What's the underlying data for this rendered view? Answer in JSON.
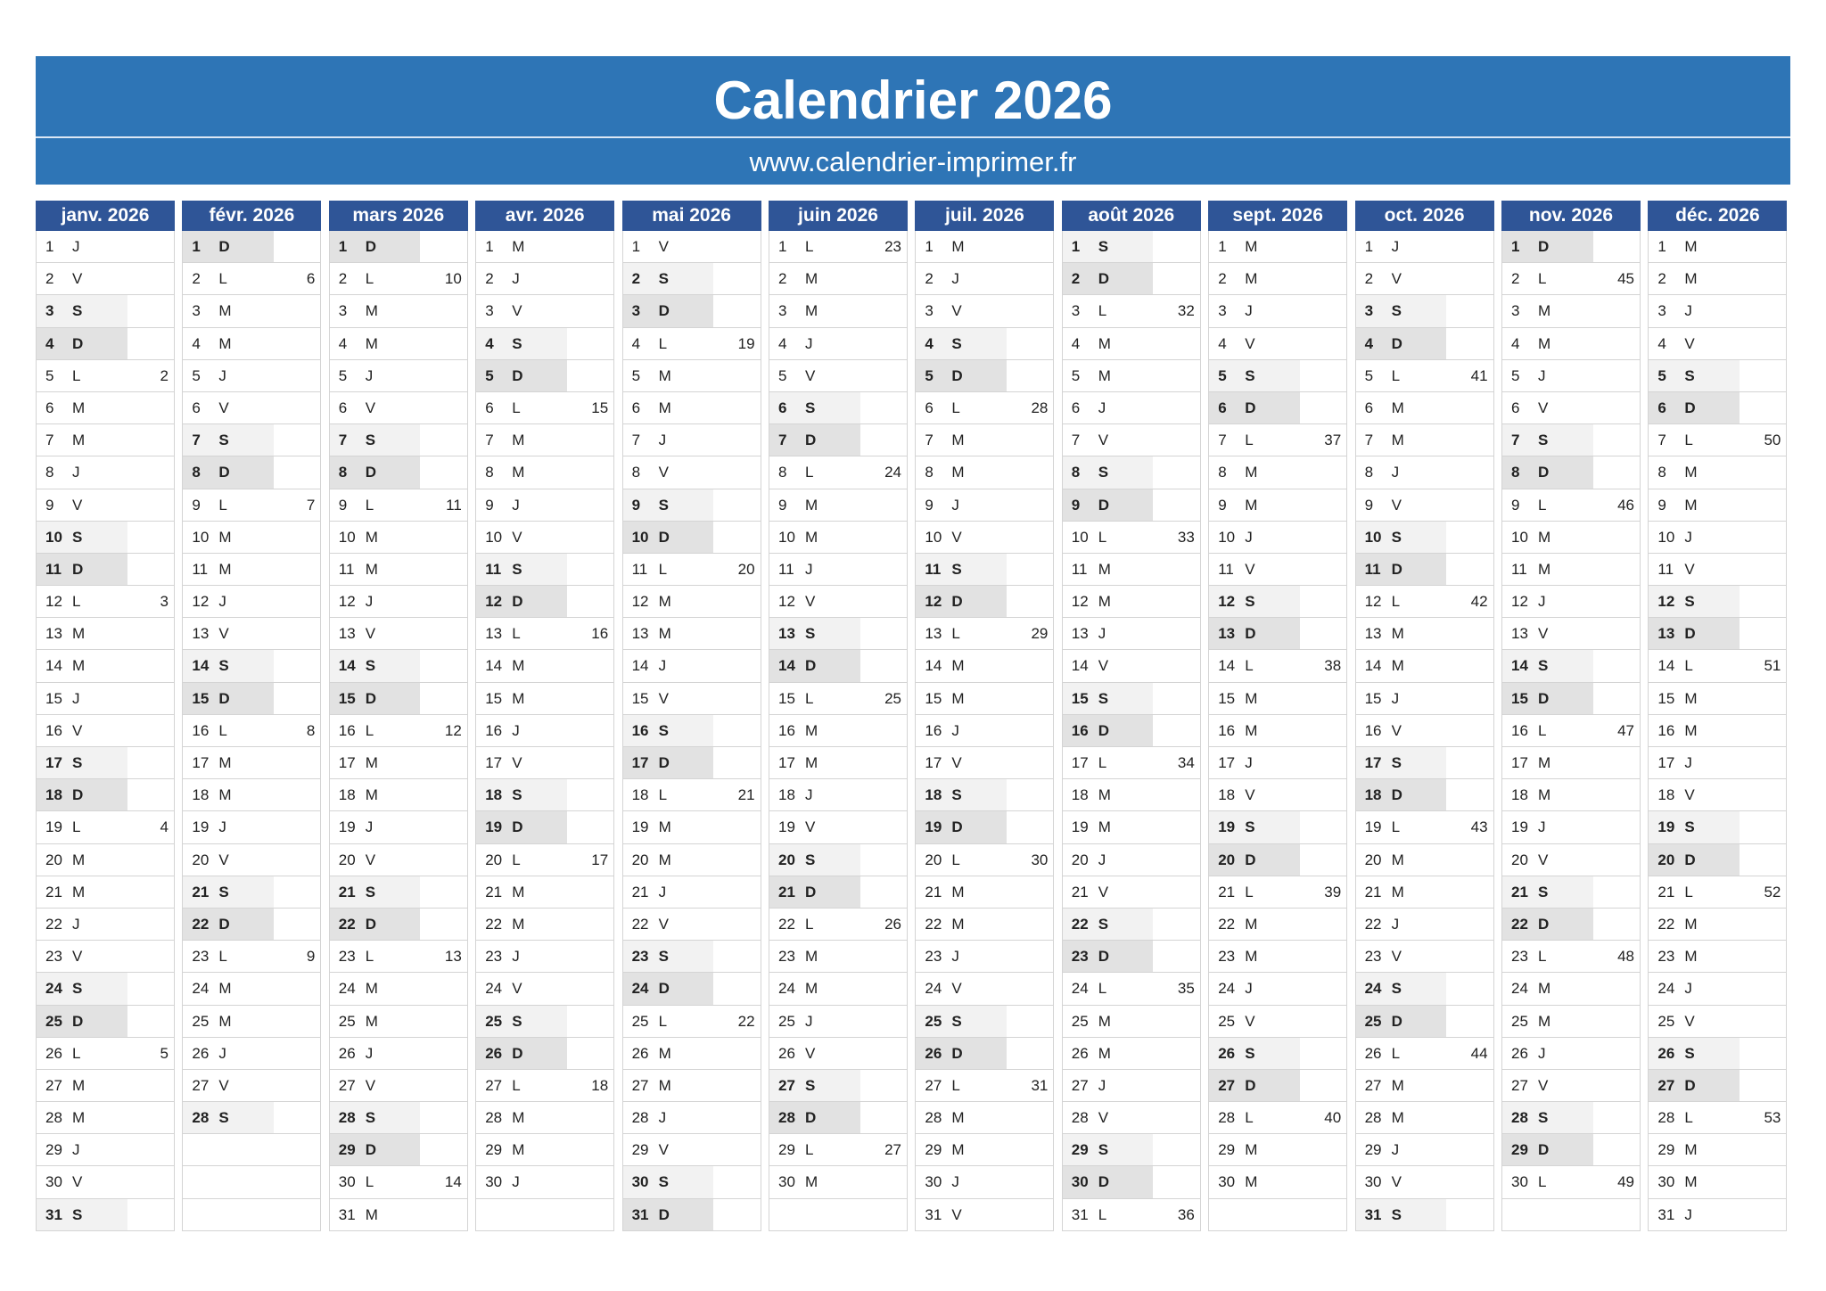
{
  "header": {
    "title": "Calendrier 2026",
    "url": "www.calendrier-imprimer.fr"
  },
  "months": [
    {
      "name": "janv. 2026",
      "days": [
        [
          1,
          "J"
        ],
        [
          2,
          "V"
        ],
        [
          3,
          "S"
        ],
        [
          4,
          "D"
        ],
        [
          5,
          "L",
          2
        ],
        [
          6,
          "M"
        ],
        [
          7,
          "M"
        ],
        [
          8,
          "J"
        ],
        [
          9,
          "V"
        ],
        [
          10,
          "S"
        ],
        [
          11,
          "D"
        ],
        [
          12,
          "L",
          3
        ],
        [
          13,
          "M"
        ],
        [
          14,
          "M"
        ],
        [
          15,
          "J"
        ],
        [
          16,
          "V"
        ],
        [
          17,
          "S"
        ],
        [
          18,
          "D"
        ],
        [
          19,
          "L",
          4
        ],
        [
          20,
          "M"
        ],
        [
          21,
          "M"
        ],
        [
          22,
          "J"
        ],
        [
          23,
          "V"
        ],
        [
          24,
          "S"
        ],
        [
          25,
          "D"
        ],
        [
          26,
          "L",
          5
        ],
        [
          27,
          "M"
        ],
        [
          28,
          "M"
        ],
        [
          29,
          "J"
        ],
        [
          30,
          "V"
        ],
        [
          31,
          "S"
        ]
      ]
    },
    {
      "name": "févr. 2026",
      "days": [
        [
          1,
          "D"
        ],
        [
          2,
          "L",
          6
        ],
        [
          3,
          "M"
        ],
        [
          4,
          "M"
        ],
        [
          5,
          "J"
        ],
        [
          6,
          "V"
        ],
        [
          7,
          "S"
        ],
        [
          8,
          "D"
        ],
        [
          9,
          "L",
          7
        ],
        [
          10,
          "M"
        ],
        [
          11,
          "M"
        ],
        [
          12,
          "J"
        ],
        [
          13,
          "V"
        ],
        [
          14,
          "S"
        ],
        [
          15,
          "D"
        ],
        [
          16,
          "L",
          8
        ],
        [
          17,
          "M"
        ],
        [
          18,
          "M"
        ],
        [
          19,
          "J"
        ],
        [
          20,
          "V"
        ],
        [
          21,
          "S"
        ],
        [
          22,
          "D"
        ],
        [
          23,
          "L",
          9
        ],
        [
          24,
          "M"
        ],
        [
          25,
          "M"
        ],
        [
          26,
          "J"
        ],
        [
          27,
          "V"
        ],
        [
          28,
          "S"
        ]
      ]
    },
    {
      "name": "mars 2026",
      "days": [
        [
          1,
          "D"
        ],
        [
          2,
          "L",
          10
        ],
        [
          3,
          "M"
        ],
        [
          4,
          "M"
        ],
        [
          5,
          "J"
        ],
        [
          6,
          "V"
        ],
        [
          7,
          "S"
        ],
        [
          8,
          "D"
        ],
        [
          9,
          "L",
          11
        ],
        [
          10,
          "M"
        ],
        [
          11,
          "M"
        ],
        [
          12,
          "J"
        ],
        [
          13,
          "V"
        ],
        [
          14,
          "S"
        ],
        [
          15,
          "D"
        ],
        [
          16,
          "L",
          12
        ],
        [
          17,
          "M"
        ],
        [
          18,
          "M"
        ],
        [
          19,
          "J"
        ],
        [
          20,
          "V"
        ],
        [
          21,
          "S"
        ],
        [
          22,
          "D"
        ],
        [
          23,
          "L",
          13
        ],
        [
          24,
          "M"
        ],
        [
          25,
          "M"
        ],
        [
          26,
          "J"
        ],
        [
          27,
          "V"
        ],
        [
          28,
          "S"
        ],
        [
          29,
          "D"
        ],
        [
          30,
          "L",
          14
        ],
        [
          31,
          "M"
        ]
      ]
    },
    {
      "name": "avr. 2026",
      "days": [
        [
          1,
          "M"
        ],
        [
          2,
          "J"
        ],
        [
          3,
          "V"
        ],
        [
          4,
          "S"
        ],
        [
          5,
          "D"
        ],
        [
          6,
          "L",
          15
        ],
        [
          7,
          "M"
        ],
        [
          8,
          "M"
        ],
        [
          9,
          "J"
        ],
        [
          10,
          "V"
        ],
        [
          11,
          "S"
        ],
        [
          12,
          "D"
        ],
        [
          13,
          "L",
          16
        ],
        [
          14,
          "M"
        ],
        [
          15,
          "M"
        ],
        [
          16,
          "J"
        ],
        [
          17,
          "V"
        ],
        [
          18,
          "S"
        ],
        [
          19,
          "D"
        ],
        [
          20,
          "L",
          17
        ],
        [
          21,
          "M"
        ],
        [
          22,
          "M"
        ],
        [
          23,
          "J"
        ],
        [
          24,
          "V"
        ],
        [
          25,
          "S"
        ],
        [
          26,
          "D"
        ],
        [
          27,
          "L",
          18
        ],
        [
          28,
          "M"
        ],
        [
          29,
          "M"
        ],
        [
          30,
          "J"
        ]
      ]
    },
    {
      "name": "mai 2026",
      "days": [
        [
          1,
          "V"
        ],
        [
          2,
          "S"
        ],
        [
          3,
          "D"
        ],
        [
          4,
          "L",
          19
        ],
        [
          5,
          "M"
        ],
        [
          6,
          "M"
        ],
        [
          7,
          "J"
        ],
        [
          8,
          "V"
        ],
        [
          9,
          "S"
        ],
        [
          10,
          "D"
        ],
        [
          11,
          "L",
          20
        ],
        [
          12,
          "M"
        ],
        [
          13,
          "M"
        ],
        [
          14,
          "J"
        ],
        [
          15,
          "V"
        ],
        [
          16,
          "S"
        ],
        [
          17,
          "D"
        ],
        [
          18,
          "L",
          21
        ],
        [
          19,
          "M"
        ],
        [
          20,
          "M"
        ],
        [
          21,
          "J"
        ],
        [
          22,
          "V"
        ],
        [
          23,
          "S"
        ],
        [
          24,
          "D"
        ],
        [
          25,
          "L",
          22
        ],
        [
          26,
          "M"
        ],
        [
          27,
          "M"
        ],
        [
          28,
          "J"
        ],
        [
          29,
          "V"
        ],
        [
          30,
          "S"
        ],
        [
          31,
          "D"
        ]
      ]
    },
    {
      "name": "juin 2026",
      "days": [
        [
          1,
          "L",
          23
        ],
        [
          2,
          "M"
        ],
        [
          3,
          "M"
        ],
        [
          4,
          "J"
        ],
        [
          5,
          "V"
        ],
        [
          6,
          "S"
        ],
        [
          7,
          "D"
        ],
        [
          8,
          "L",
          24
        ],
        [
          9,
          "M"
        ],
        [
          10,
          "M"
        ],
        [
          11,
          "J"
        ],
        [
          12,
          "V"
        ],
        [
          13,
          "S"
        ],
        [
          14,
          "D"
        ],
        [
          15,
          "L",
          25
        ],
        [
          16,
          "M"
        ],
        [
          17,
          "M"
        ],
        [
          18,
          "J"
        ],
        [
          19,
          "V"
        ],
        [
          20,
          "S"
        ],
        [
          21,
          "D"
        ],
        [
          22,
          "L",
          26
        ],
        [
          23,
          "M"
        ],
        [
          24,
          "M"
        ],
        [
          25,
          "J"
        ],
        [
          26,
          "V"
        ],
        [
          27,
          "S"
        ],
        [
          28,
          "D"
        ],
        [
          29,
          "L",
          27
        ],
        [
          30,
          "M"
        ]
      ]
    },
    {
      "name": "juil. 2026",
      "days": [
        [
          1,
          "M"
        ],
        [
          2,
          "J"
        ],
        [
          3,
          "V"
        ],
        [
          4,
          "S"
        ],
        [
          5,
          "D"
        ],
        [
          6,
          "L",
          28
        ],
        [
          7,
          "M"
        ],
        [
          8,
          "M"
        ],
        [
          9,
          "J"
        ],
        [
          10,
          "V"
        ],
        [
          11,
          "S"
        ],
        [
          12,
          "D"
        ],
        [
          13,
          "L",
          29
        ],
        [
          14,
          "M"
        ],
        [
          15,
          "M"
        ],
        [
          16,
          "J"
        ],
        [
          17,
          "V"
        ],
        [
          18,
          "S"
        ],
        [
          19,
          "D"
        ],
        [
          20,
          "L",
          30
        ],
        [
          21,
          "M"
        ],
        [
          22,
          "M"
        ],
        [
          23,
          "J"
        ],
        [
          24,
          "V"
        ],
        [
          25,
          "S"
        ],
        [
          26,
          "D"
        ],
        [
          27,
          "L",
          31
        ],
        [
          28,
          "M"
        ],
        [
          29,
          "M"
        ],
        [
          30,
          "J"
        ],
        [
          31,
          "V"
        ]
      ]
    },
    {
      "name": "août 2026",
      "days": [
        [
          1,
          "S"
        ],
        [
          2,
          "D"
        ],
        [
          3,
          "L",
          32
        ],
        [
          4,
          "M"
        ],
        [
          5,
          "M"
        ],
        [
          6,
          "J"
        ],
        [
          7,
          "V"
        ],
        [
          8,
          "S"
        ],
        [
          9,
          "D"
        ],
        [
          10,
          "L",
          33
        ],
        [
          11,
          "M"
        ],
        [
          12,
          "M"
        ],
        [
          13,
          "J"
        ],
        [
          14,
          "V"
        ],
        [
          15,
          "S"
        ],
        [
          16,
          "D"
        ],
        [
          17,
          "L",
          34
        ],
        [
          18,
          "M"
        ],
        [
          19,
          "M"
        ],
        [
          20,
          "J"
        ],
        [
          21,
          "V"
        ],
        [
          22,
          "S"
        ],
        [
          23,
          "D"
        ],
        [
          24,
          "L",
          35
        ],
        [
          25,
          "M"
        ],
        [
          26,
          "M"
        ],
        [
          27,
          "J"
        ],
        [
          28,
          "V"
        ],
        [
          29,
          "S"
        ],
        [
          30,
          "D"
        ],
        [
          31,
          "L",
          36
        ]
      ]
    },
    {
      "name": "sept. 2026",
      "days": [
        [
          1,
          "M"
        ],
        [
          2,
          "M"
        ],
        [
          3,
          "J"
        ],
        [
          4,
          "V"
        ],
        [
          5,
          "S"
        ],
        [
          6,
          "D"
        ],
        [
          7,
          "L",
          37
        ],
        [
          8,
          "M"
        ],
        [
          9,
          "M"
        ],
        [
          10,
          "J"
        ],
        [
          11,
          "V"
        ],
        [
          12,
          "S"
        ],
        [
          13,
          "D"
        ],
        [
          14,
          "L",
          38
        ],
        [
          15,
          "M"
        ],
        [
          16,
          "M"
        ],
        [
          17,
          "J"
        ],
        [
          18,
          "V"
        ],
        [
          19,
          "S"
        ],
        [
          20,
          "D"
        ],
        [
          21,
          "L",
          39
        ],
        [
          22,
          "M"
        ],
        [
          23,
          "M"
        ],
        [
          24,
          "J"
        ],
        [
          25,
          "V"
        ],
        [
          26,
          "S"
        ],
        [
          27,
          "D"
        ],
        [
          28,
          "L",
          40
        ],
        [
          29,
          "M"
        ],
        [
          30,
          "M"
        ]
      ]
    },
    {
      "name": "oct. 2026",
      "days": [
        [
          1,
          "J"
        ],
        [
          2,
          "V"
        ],
        [
          3,
          "S"
        ],
        [
          4,
          "D"
        ],
        [
          5,
          "L",
          41
        ],
        [
          6,
          "M"
        ],
        [
          7,
          "M"
        ],
        [
          8,
          "J"
        ],
        [
          9,
          "V"
        ],
        [
          10,
          "S"
        ],
        [
          11,
          "D"
        ],
        [
          12,
          "L",
          42
        ],
        [
          13,
          "M"
        ],
        [
          14,
          "M"
        ],
        [
          15,
          "J"
        ],
        [
          16,
          "V"
        ],
        [
          17,
          "S"
        ],
        [
          18,
          "D"
        ],
        [
          19,
          "L",
          43
        ],
        [
          20,
          "M"
        ],
        [
          21,
          "M"
        ],
        [
          22,
          "J"
        ],
        [
          23,
          "V"
        ],
        [
          24,
          "S"
        ],
        [
          25,
          "D"
        ],
        [
          26,
          "L",
          44
        ],
        [
          27,
          "M"
        ],
        [
          28,
          "M"
        ],
        [
          29,
          "J"
        ],
        [
          30,
          "V"
        ],
        [
          31,
          "S"
        ]
      ]
    },
    {
      "name": "nov. 2026",
      "days": [
        [
          1,
          "D"
        ],
        [
          2,
          "L",
          45
        ],
        [
          3,
          "M"
        ],
        [
          4,
          "M"
        ],
        [
          5,
          "J"
        ],
        [
          6,
          "V"
        ],
        [
          7,
          "S"
        ],
        [
          8,
          "D"
        ],
        [
          9,
          "L",
          46
        ],
        [
          10,
          "M"
        ],
        [
          11,
          "M"
        ],
        [
          12,
          "J"
        ],
        [
          13,
          "V"
        ],
        [
          14,
          "S"
        ],
        [
          15,
          "D"
        ],
        [
          16,
          "L",
          47
        ],
        [
          17,
          "M"
        ],
        [
          18,
          "M"
        ],
        [
          19,
          "J"
        ],
        [
          20,
          "V"
        ],
        [
          21,
          "S"
        ],
        [
          22,
          "D"
        ],
        [
          23,
          "L",
          48
        ],
        [
          24,
          "M"
        ],
        [
          25,
          "M"
        ],
        [
          26,
          "J"
        ],
        [
          27,
          "V"
        ],
        [
          28,
          "S"
        ],
        [
          29,
          "D"
        ],
        [
          30,
          "L",
          49
        ]
      ]
    },
    {
      "name": "déc. 2026",
      "days": [
        [
          1,
          "M"
        ],
        [
          2,
          "M"
        ],
        [
          3,
          "J"
        ],
        [
          4,
          "V"
        ],
        [
          5,
          "S"
        ],
        [
          6,
          "D"
        ],
        [
          7,
          "L",
          50
        ],
        [
          8,
          "M"
        ],
        [
          9,
          "M"
        ],
        [
          10,
          "J"
        ],
        [
          11,
          "V"
        ],
        [
          12,
          "S"
        ],
        [
          13,
          "D"
        ],
        [
          14,
          "L",
          51
        ],
        [
          15,
          "M"
        ],
        [
          16,
          "M"
        ],
        [
          17,
          "J"
        ],
        [
          18,
          "V"
        ],
        [
          19,
          "S"
        ],
        [
          20,
          "D"
        ],
        [
          21,
          "L",
          52
        ],
        [
          22,
          "M"
        ],
        [
          23,
          "M"
        ],
        [
          24,
          "J"
        ],
        [
          25,
          "V"
        ],
        [
          26,
          "S"
        ],
        [
          27,
          "D"
        ],
        [
          28,
          "L",
          53
        ],
        [
          29,
          "M"
        ],
        [
          30,
          "M"
        ],
        [
          31,
          "J"
        ]
      ]
    }
  ]
}
